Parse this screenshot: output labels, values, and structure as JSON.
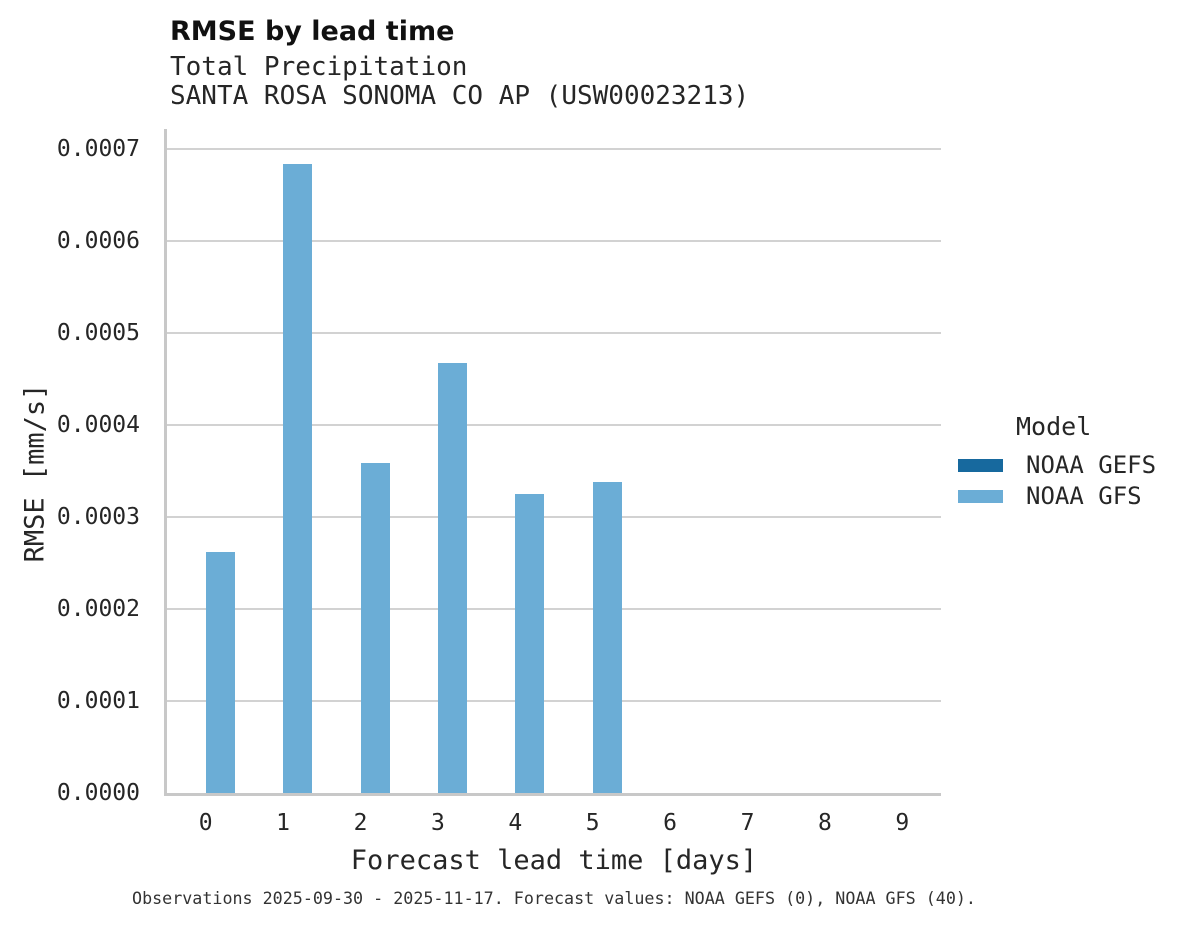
{
  "header": {
    "title": "RMSE by lead time",
    "subtitle1": "Total Precipitation",
    "subtitle2": "SANTA ROSA SONOMA CO AP (USW00023213)"
  },
  "chart_data": {
    "type": "bar",
    "title": "RMSE by lead time",
    "subtitle": [
      "Total Precipitation",
      "SANTA ROSA SONOMA CO AP (USW00023213)"
    ],
    "xlabel": "Forecast lead time [days]",
    "ylabel": "RMSE [mm/s]",
    "categories": [
      "0",
      "1",
      "2",
      "3",
      "4",
      "5",
      "6",
      "7",
      "8",
      "9"
    ],
    "series": [
      {
        "name": "NOAA GEFS",
        "color": "#17699e",
        "values": [
          null,
          null,
          null,
          null,
          null,
          null,
          null,
          null,
          null,
          null
        ]
      },
      {
        "name": "NOAA GFS",
        "color": "#6badd6",
        "values": [
          0.000262,
          0.000684,
          0.000359,
          0.000467,
          0.000325,
          0.000338,
          null,
          null,
          null,
          null
        ]
      }
    ],
    "ylim": [
      0,
      0.0007
    ],
    "yticks": [
      0,
      0.0001,
      0.0002,
      0.0003,
      0.0004,
      0.0005,
      0.0006,
      0.0007
    ],
    "ytick_labels": [
      "0.0000",
      "0.0001",
      "0.0002",
      "0.0003",
      "0.0004",
      "0.0005",
      "0.0006",
      "0.0007"
    ],
    "grid": "horizontal-only",
    "legend_position": "right-center"
  },
  "axes": {
    "xlabel": "Forecast lead time [days]",
    "ylabel": "RMSE [mm/s]"
  },
  "legend": {
    "title": "Model",
    "items": [
      {
        "label": "NOAA GEFS",
        "color": "#17699e"
      },
      {
        "label": "NOAA GFS",
        "color": "#6badd6"
      }
    ]
  },
  "footer": {
    "caption": "Observations 2025-09-30 - 2025-11-17. Forecast values: NOAA GEFS (0), NOAA GFS (40)."
  },
  "colors": {
    "bar_gefs": "#17699e",
    "bar_gfs": "#6badd6",
    "gridline": "#d2d2d2",
    "spine": "#c8c8c8",
    "text": "#262626"
  }
}
